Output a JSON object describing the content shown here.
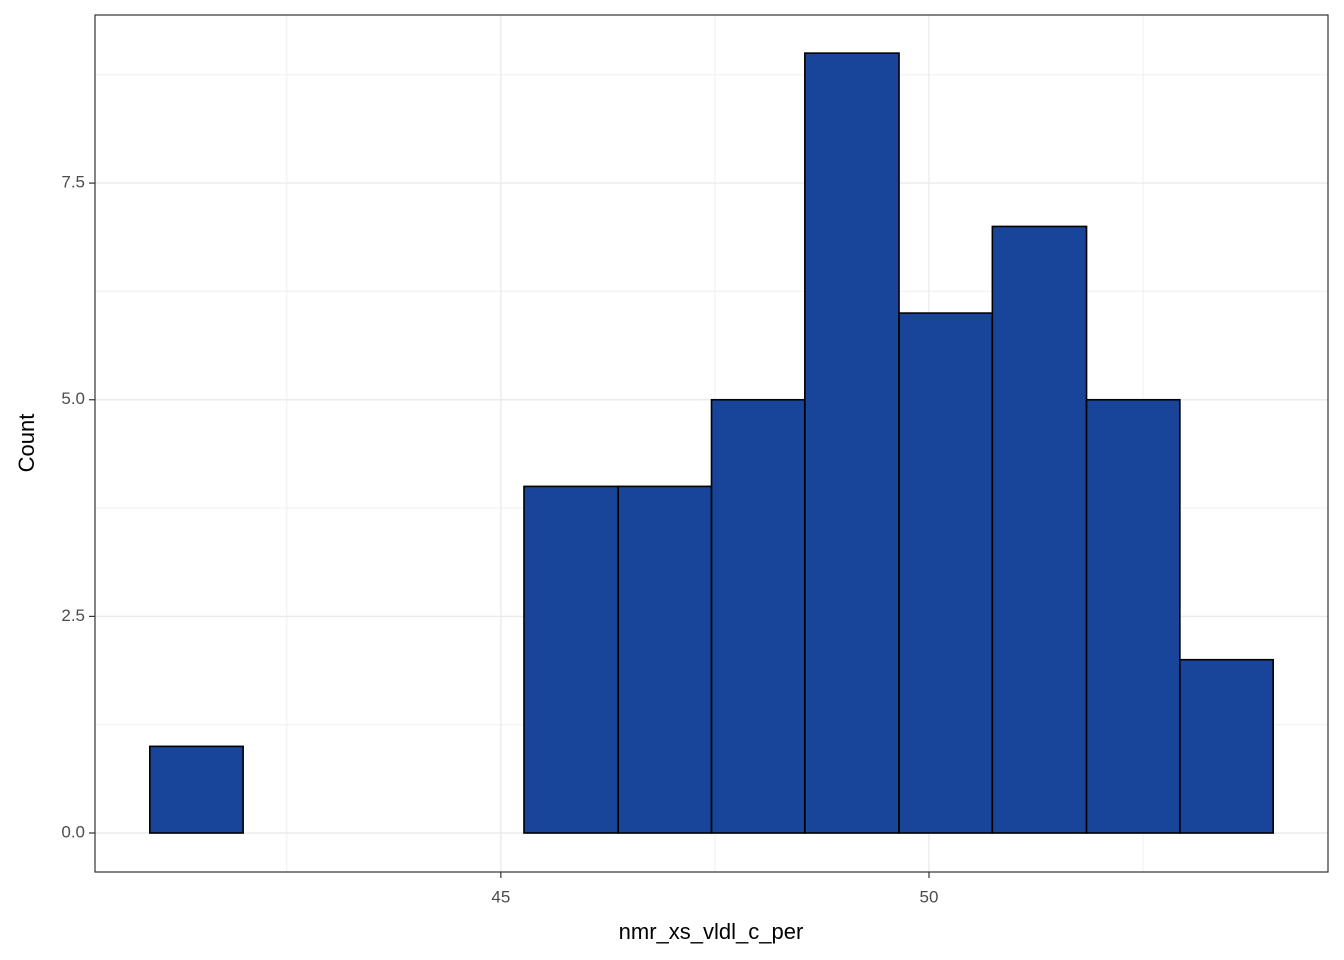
{
  "chart_data": {
    "type": "histogram",
    "x_label": "nmr_xs_vldl_c_per",
    "y_label": "Count",
    "bins": [
      40.9,
      41.99,
      43.09,
      44.18,
      45.27,
      46.37,
      47.46,
      48.55,
      49.65,
      50.74,
      51.84,
      52.93,
      54.02
    ],
    "values": [
      1,
      0,
      0,
      0,
      4,
      4,
      5,
      9,
      6,
      7,
      5,
      2
    ],
    "color": "#18449a",
    "edge_color": "#000000",
    "xlim": [
      40.26,
      54.66
    ],
    "xticks": [
      45,
      50
    ],
    "x_minor_ticks": [
      42.5,
      47.5,
      52.5
    ],
    "ylim": [
      -0.45,
      9.44
    ],
    "yticks": [
      {
        "value": 0,
        "label": "0.0"
      },
      {
        "value": 2.5,
        "label": "2.5"
      },
      {
        "value": 5,
        "label": "5.0"
      },
      {
        "value": 7.5,
        "label": "7.5"
      }
    ],
    "y_minor_ticks": [
      1.25,
      3.75,
      6.25,
      8.75
    ],
    "grid": true
  }
}
